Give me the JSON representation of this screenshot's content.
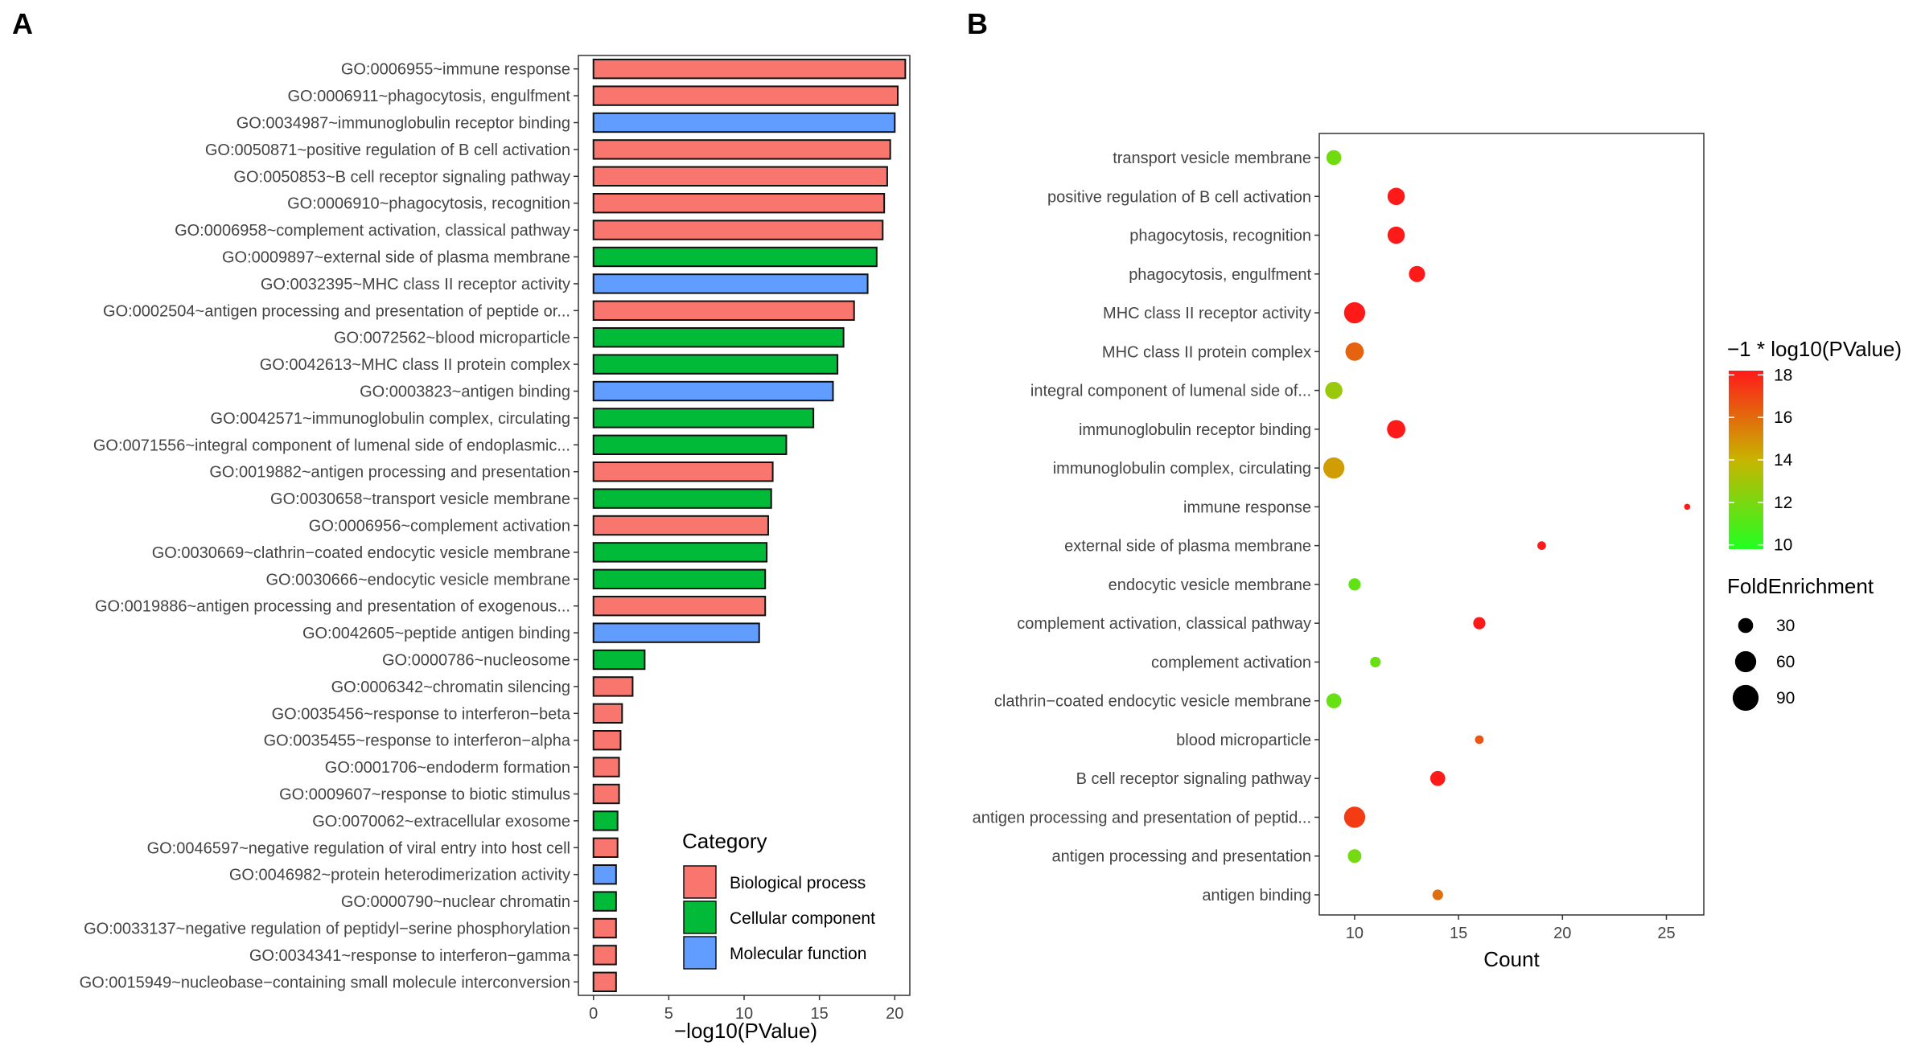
{
  "panels": {
    "a": "A",
    "b": "B"
  },
  "chart_data": [
    {
      "type": "bar",
      "orientation": "horizontal",
      "title": "",
      "xlabel": "−log10(PValue)",
      "ylabel": "",
      "xlim": [
        -1,
        21
      ],
      "xticks": [
        0,
        5,
        10,
        15,
        20
      ],
      "grid": false,
      "legend_position": "bottom-right",
      "categories": [
        "GO:0006955~immune response",
        "GO:0006911~phagocytosis, engulfment",
        "GO:0034987~immunoglobulin receptor binding",
        "GO:0050871~positive regulation of B cell activation",
        "GO:0050853~B cell receptor signaling pathway",
        "GO:0006910~phagocytosis, recognition",
        "GO:0006958~complement activation, classical pathway",
        "GO:0009897~external side of plasma membrane",
        "GO:0032395~MHC class II receptor activity",
        "GO:0002504~antigen processing and presentation of peptide or...",
        "GO:0072562~blood microparticle",
        "GO:0042613~MHC class II protein complex",
        "GO:0003823~antigen binding",
        "GO:0042571~immunoglobulin complex, circulating",
        "GO:0071556~integral component of lumenal side of endoplasmic...",
        "GO:0019882~antigen processing and presentation",
        "GO:0030658~transport vesicle membrane",
        "GO:0006956~complement activation",
        "GO:0030669~clathrin−coated endocytic vesicle membrane",
        "GO:0030666~endocytic vesicle membrane",
        "GO:0019886~antigen processing and presentation of exogenous...",
        "GO:0042605~peptide antigen binding",
        "GO:0000786~nucleosome",
        "GO:0006342~chromatin silencing",
        "GO:0035456~response to interferon−beta",
        "GO:0035455~response to interferon−alpha",
        "GO:0001706~endoderm formation",
        "GO:0009607~response to biotic stimulus",
        "GO:0070062~extracellular exosome",
        "GO:0046597~negative regulation of viral entry into host cell",
        "GO:0046982~protein heterodimerization activity",
        "GO:0000790~nuclear chromatin",
        "GO:0033137~negative regulation of peptidyl−serine phosphorylation",
        "GO:0034341~response to interferon−gamma",
        "GO:0015949~nucleobase−containing small molecule interconversion"
      ],
      "values": [
        20.7,
        20.2,
        20.0,
        19.7,
        19.5,
        19.3,
        19.2,
        18.8,
        18.2,
        17.3,
        16.6,
        16.2,
        15.9,
        14.6,
        12.8,
        11.9,
        11.8,
        11.6,
        11.5,
        11.4,
        11.4,
        11.0,
        3.4,
        2.6,
        1.9,
        1.8,
        1.7,
        1.7,
        1.6,
        1.6,
        1.5,
        1.5,
        1.5,
        1.5,
        1.5
      ],
      "bar_category": [
        "BP",
        "BP",
        "MF",
        "BP",
        "BP",
        "BP",
        "BP",
        "CC",
        "MF",
        "BP",
        "CC",
        "CC",
        "MF",
        "CC",
        "CC",
        "BP",
        "CC",
        "BP",
        "CC",
        "CC",
        "BP",
        "MF",
        "CC",
        "BP",
        "BP",
        "BP",
        "BP",
        "BP",
        "CC",
        "BP",
        "MF",
        "CC",
        "BP",
        "BP",
        "BP"
      ],
      "legend": {
        "title": "Category",
        "items": [
          {
            "key": "BP",
            "label": "Biological process",
            "color": "#f8766d"
          },
          {
            "key": "CC",
            "label": "Cellular component",
            "color": "#00ba38"
          },
          {
            "key": "MF",
            "label": "Molecular function",
            "color": "#619cff"
          }
        ]
      }
    },
    {
      "type": "scatter",
      "title": "",
      "xlabel": "Count",
      "ylabel": "",
      "xlim": [
        8.3,
        26.8
      ],
      "xticks": [
        10,
        15,
        20,
        25
      ],
      "grid": false,
      "categories": [
        "transport vesicle membrane",
        "positive regulation of B cell activation",
        "phagocytosis, recognition",
        "phagocytosis, engulfment",
        "MHC class II receptor activity",
        "MHC class II protein complex",
        "integral component of lumenal side of...",
        "immunoglobulin receptor binding",
        "immunoglobulin complex, circulating",
        "immune response",
        "external side of plasma membrane",
        "endocytic vesicle membrane",
        "complement activation, classical pathway",
        "complement activation",
        "clathrin−coated endocytic vesicle membrane",
        "blood microparticle",
        "B cell receptor signaling pathway",
        "antigen processing and presentation of peptid...",
        "antigen processing and presentation",
        "antigen binding"
      ],
      "count": [
        9,
        12,
        12,
        13,
        10,
        10,
        9,
        12,
        9,
        26,
        19,
        10,
        16,
        11,
        9,
        16,
        14,
        10,
        10,
        14
      ],
      "neg_log10_p": [
        11.8,
        19.7,
        19.3,
        20.2,
        18.2,
        16.2,
        12.8,
        20.0,
        14.6,
        20.7,
        18.8,
        11.4,
        19.2,
        11.6,
        11.5,
        16.6,
        19.5,
        17.3,
        11.9,
        15.9
      ],
      "fold_enrichment": [
        30,
        40,
        40,
        35,
        60,
        45,
        40,
        45,
        60,
        5,
        10,
        20,
        20,
        15,
        30,
        10,
        30,
        60,
        25,
        15
      ],
      "color_legend": {
        "title": "−1 * log10(PValue)",
        "min": 9.8,
        "max": 18.2,
        "ticks": [
          10,
          12,
          14,
          16,
          18
        ],
        "low_color": "#22ff22",
        "mid_color": "#c8b400",
        "high_color": "#ff1a1a"
      },
      "size_legend": {
        "title": "FoldEnrichment",
        "values": [
          30,
          60,
          90
        ]
      }
    }
  ]
}
